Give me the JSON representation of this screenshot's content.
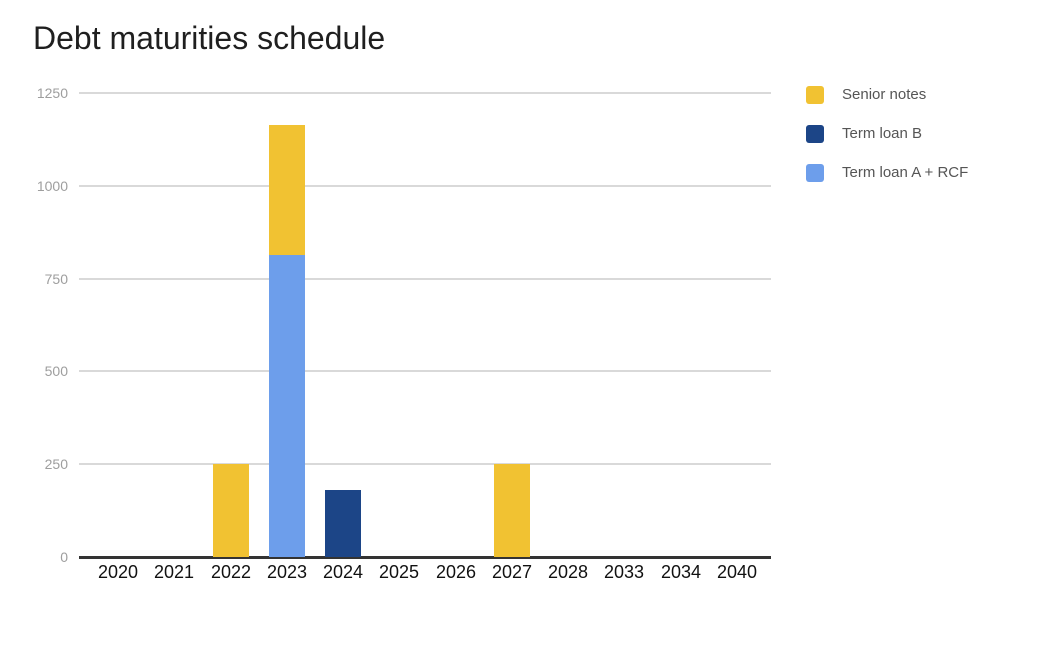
{
  "title": "Debt maturities schedule",
  "legend": {
    "items": [
      {
        "label": "Senior notes",
        "color": "#F1C232"
      },
      {
        "label": "Term loan B",
        "color": "#1C4587"
      },
      {
        "label": "Term loan A + RCF",
        "color": "#6D9EEB"
      }
    ]
  },
  "colors": {
    "senior_notes": "#F1C232",
    "term_loan_b": "#1C4587",
    "term_loan_a_rcf": "#6D9EEB",
    "gridline": "#D9D9D9",
    "axis_line": "#333333",
    "y_tick_label": "#9E9E9E",
    "x_tick_label": "#111111",
    "legend_text": "#555555",
    "title_text": "#1F1F1F",
    "background": "#FFFFFF"
  },
  "chart_data": {
    "type": "bar",
    "stacked": true,
    "title": "Debt maturities schedule",
    "categories": [
      "2020",
      "2021",
      "2022",
      "2023",
      "2024",
      "2025",
      "2026",
      "2027",
      "2028",
      "2033",
      "2034",
      "2040"
    ],
    "series": [
      {
        "name": "Term loan A + RCF",
        "color": "#6D9EEB",
        "values": [
          0,
          0,
          0,
          815,
          0,
          0,
          0,
          0,
          0,
          0,
          0,
          0
        ]
      },
      {
        "name": "Term loan B",
        "color": "#1C4587",
        "values": [
          0,
          0,
          0,
          0,
          180,
          0,
          0,
          0,
          0,
          0,
          0,
          0
        ]
      },
      {
        "name": "Senior notes",
        "color": "#F1C232",
        "values": [
          0,
          0,
          250,
          350,
          0,
          0,
          0,
          250,
          0,
          0,
          0,
          0
        ]
      }
    ],
    "y_ticks": [
      0,
      250,
      500,
      750,
      1000,
      1250
    ],
    "ylim": [
      0,
      1250
    ],
    "xlabel": "",
    "ylabel": "",
    "grid": true,
    "legend_position": "right",
    "legend_order": [
      "Senior notes",
      "Term loan B",
      "Term loan A + RCF"
    ]
  }
}
